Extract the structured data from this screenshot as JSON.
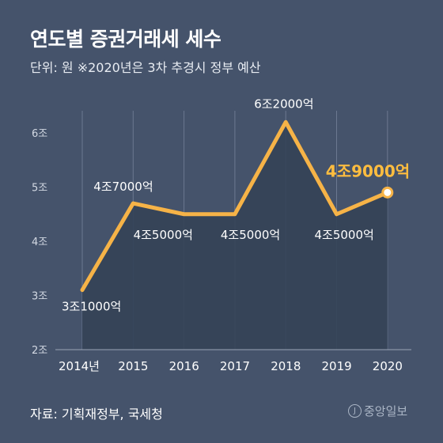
{
  "title": "연도별 증권거래세 세수",
  "subtitle": "단위: 원   ※2020년은 3차 추경시 정부 예산",
  "source": "자료: 기획재정부, 국세청",
  "logo": "중앙일보",
  "colors": {
    "background": "#45536b",
    "line": "#f6b347",
    "area": "#344257",
    "grid": "#6b7890",
    "highlight_label": "#ffbd3f"
  },
  "chart_data": {
    "type": "line",
    "title": "연도별 증권거래세 세수",
    "ylabel": "",
    "xlabel": "",
    "categories": [
      "2014년",
      "2015",
      "2016",
      "2017",
      "2018",
      "2019",
      "2020"
    ],
    "values": [
      3.1,
      4.7,
      4.5,
      4.5,
      6.2,
      4.5,
      4.9
    ],
    "data_labels": [
      "3조1000억",
      "4조7000억",
      "4조5000억",
      "4조5000억",
      "6조2000억",
      "4조5000억",
      "4조9000억"
    ],
    "ylim": [
      2,
      6.3
    ],
    "yticks": [
      2,
      3,
      4,
      5,
      6
    ],
    "ytick_labels": [
      "2조",
      "3조",
      "4조",
      "5조",
      "6조"
    ],
    "grid": "vertical",
    "highlight_index": 6
  }
}
